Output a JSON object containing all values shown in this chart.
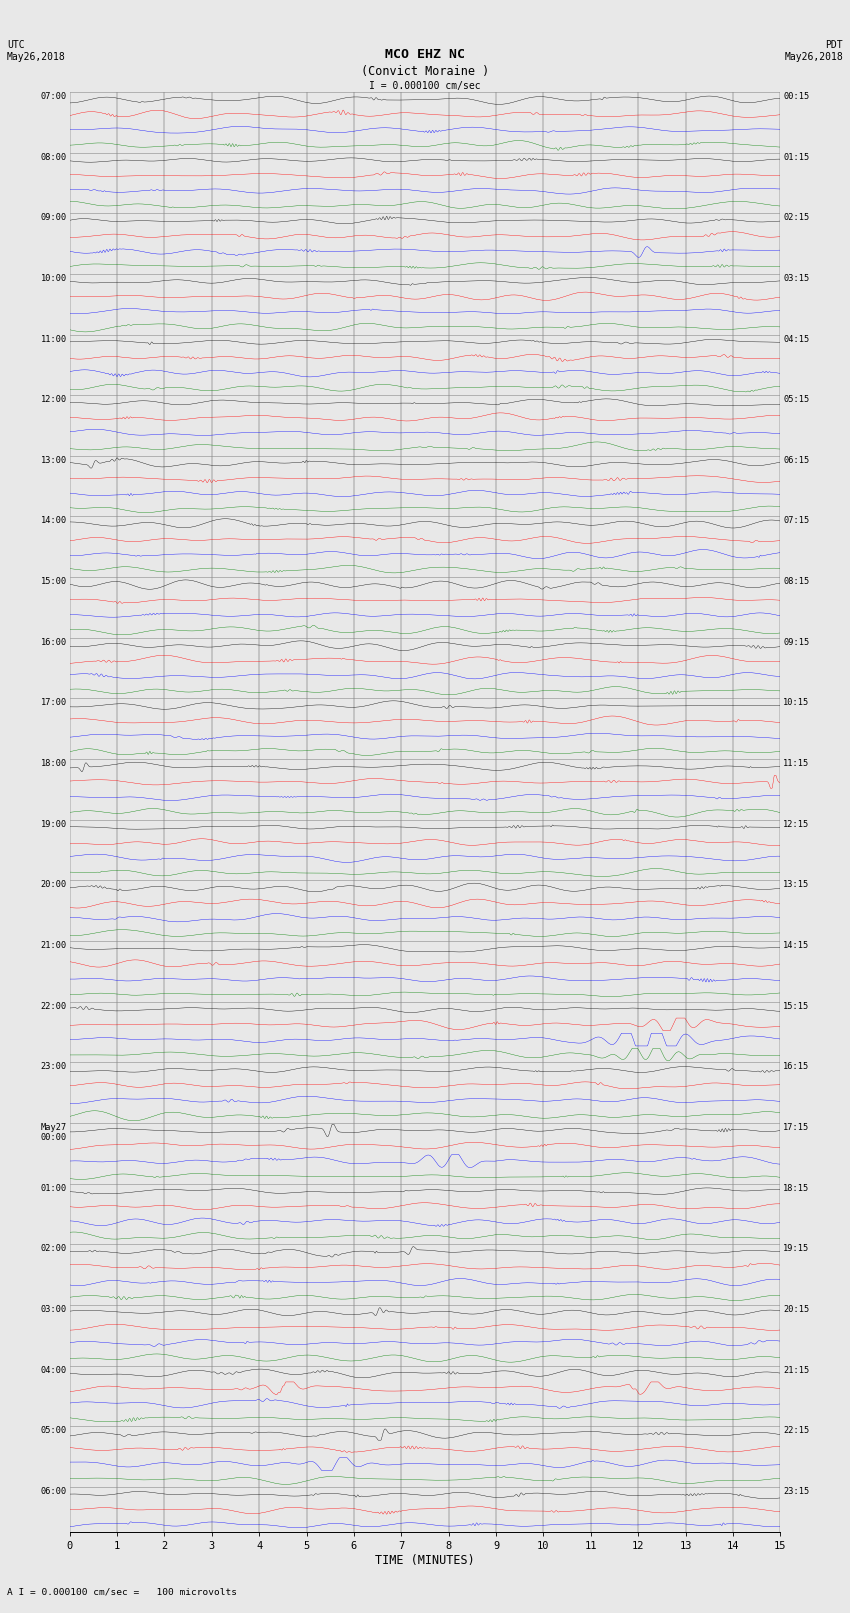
{
  "title_line1": "MCO EHZ NC",
  "title_line2": "(Convict Moraine )",
  "scale_label": "I = 0.000100 cm/sec",
  "left_header1": "UTC",
  "left_header2": "May26,2018",
  "right_header1": "PDT",
  "right_header2": "May26,2018",
  "xlabel": "TIME (MINUTES)",
  "footer": "A I = 0.000100 cm/sec =   100 microvolts",
  "utc_labels": {
    "0": "07:00",
    "4": "08:00",
    "8": "09:00",
    "12": "10:00",
    "16": "11:00",
    "20": "12:00",
    "24": "13:00",
    "28": "14:00",
    "32": "15:00",
    "36": "16:00",
    "40": "17:00",
    "44": "18:00",
    "48": "19:00",
    "52": "20:00",
    "56": "21:00",
    "60": "22:00",
    "64": "23:00",
    "68": "May27\n00:00",
    "72": "01:00",
    "76": "02:00",
    "80": "03:00",
    "84": "04:00",
    "88": "05:00",
    "92": "06:00"
  },
  "pdt_labels": {
    "0": "00:15",
    "4": "01:15",
    "8": "02:15",
    "12": "03:15",
    "16": "04:15",
    "20": "05:15",
    "24": "06:15",
    "28": "07:15",
    "32": "08:15",
    "36": "09:15",
    "40": "10:15",
    "44": "11:15",
    "48": "12:15",
    "52": "13:15",
    "56": "14:15",
    "60": "15:15",
    "64": "16:15",
    "68": "17:15",
    "72": "18:15",
    "76": "19:15",
    "80": "20:15",
    "84": "21:15",
    "88": "22:15",
    "92": "23:15"
  },
  "num_rows": 95,
  "colors": [
    "black",
    "red",
    "blue",
    "green"
  ],
  "background": "#e8e8e8",
  "xmin": 0,
  "xmax": 15,
  "noise_amp": 0.045,
  "trace_scale": 0.42,
  "fig_width": 8.5,
  "fig_height": 16.13,
  "dpi": 100,
  "random_seed": 12345
}
